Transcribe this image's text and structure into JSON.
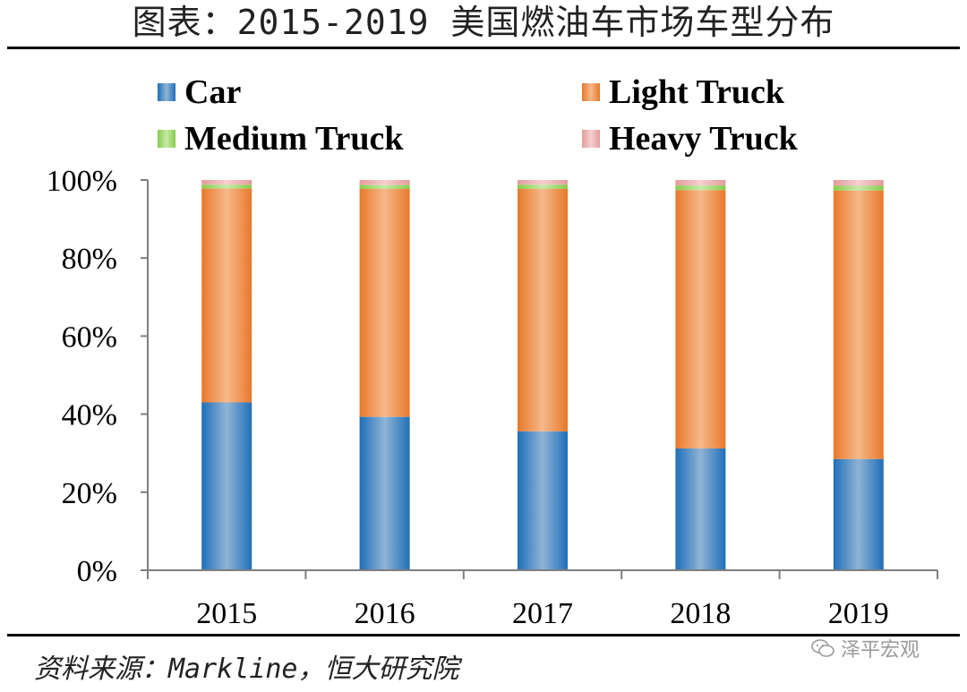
{
  "title": "图表：2015-2019 美国燃油车市场车型分布",
  "source": "资料来源：Markline，恒大研究院",
  "watermark": "泽平宏观",
  "chart_data": {
    "type": "bar",
    "stacked": true,
    "categories": [
      "2015",
      "2016",
      "2017",
      "2018",
      "2019"
    ],
    "series": [
      {
        "name": "Car",
        "color": "#2e75b6",
        "values": [
          43.0,
          39.3,
          35.6,
          31.2,
          28.5
        ]
      },
      {
        "name": "Light Truck",
        "color": "#ed7d31",
        "values": [
          54.8,
          58.4,
          62.1,
          66.2,
          68.8
        ]
      },
      {
        "name": "Medium Truck",
        "color": "#92d050",
        "values": [
          1.0,
          1.0,
          1.1,
          1.2,
          1.2
        ]
      },
      {
        "name": "Heavy Truck",
        "color": "#e6a5a5",
        "values": [
          1.2,
          1.3,
          1.2,
          1.4,
          1.5
        ]
      }
    ],
    "yticks": [
      "0%",
      "20%",
      "40%",
      "60%",
      "80%",
      "100%"
    ],
    "ylim": [
      0,
      100
    ],
    "legend": "top"
  }
}
